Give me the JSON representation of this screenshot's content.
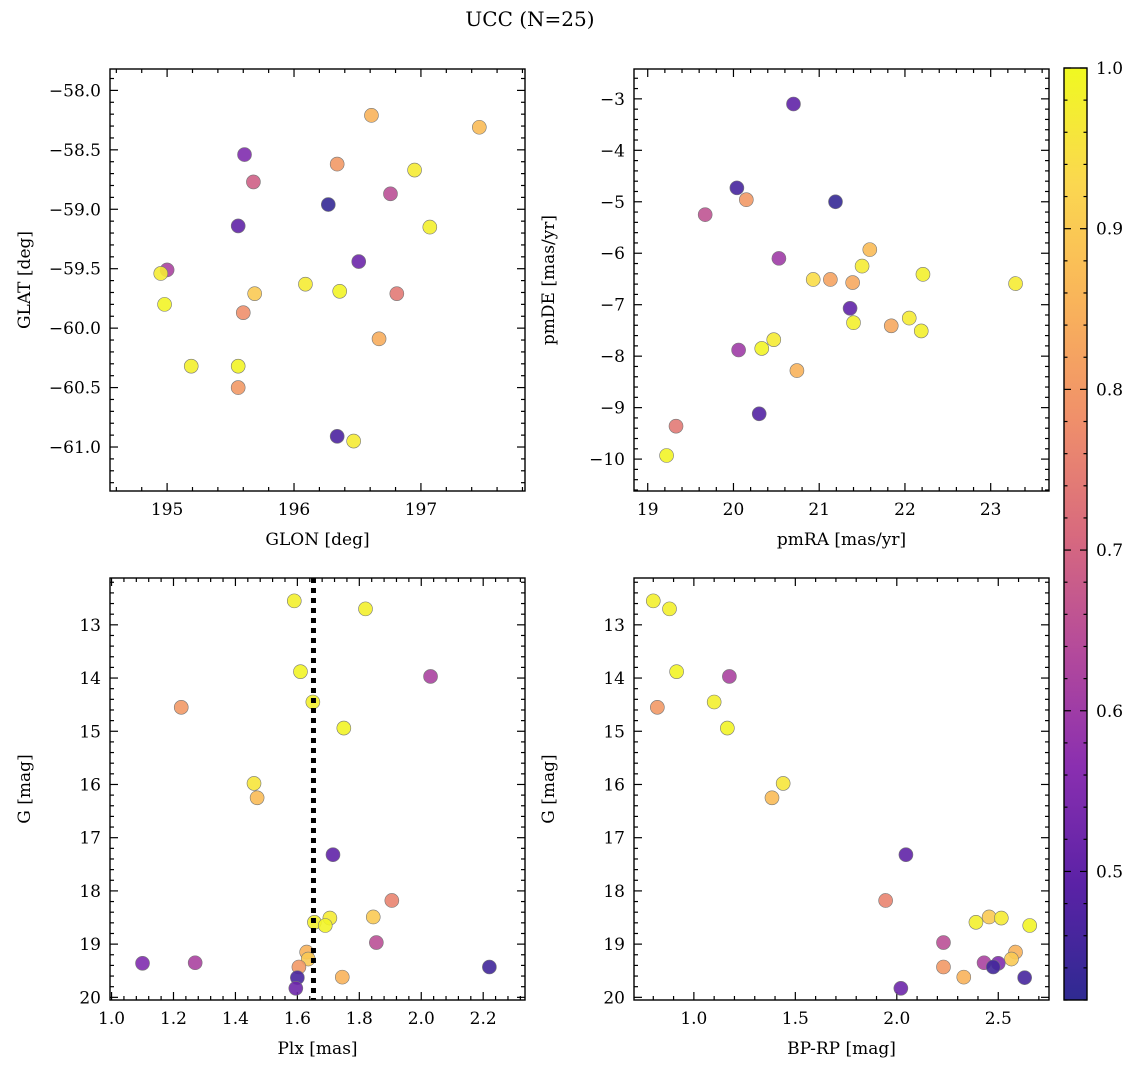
{
  "figure": {
    "title": "UCC (N=25)"
  },
  "colorbar": {
    "vmin": 0.42,
    "vmax": 1.0,
    "ticks": [
      0.5,
      0.6,
      0.7,
      0.8,
      0.9,
      1.0
    ],
    "tick_labels": [
      "0.5",
      "0.6",
      "0.7",
      "0.8",
      "0.9",
      "1.0"
    ],
    "colormap": "plasma"
  },
  "colormap_stops": [
    "#2f2a92",
    "#5b22a6",
    "#8a2fb0",
    "#b44a9b",
    "#d86a7e",
    "#f0906a",
    "#f9b45a",
    "#fbd750",
    "#f0f921"
  ],
  "chart_data": [
    {
      "type": "scatter",
      "title": "",
      "xlabel": "GLON [deg]",
      "ylabel": "GLAT [deg]",
      "xlim": [
        194.55,
        197.82
      ],
      "ylim": [
        -61.37,
        -57.82
      ],
      "y_inverted": false,
      "xticks": [
        195,
        196,
        197
      ],
      "xtick_labels": [
        "195",
        "196",
        "197"
      ],
      "yticks": [
        -58.0,
        -58.5,
        -59.0,
        -59.5,
        -60.0,
        -60.5,
        -61.0
      ],
      "ytick_labels": [
        "−58.0",
        "−58.5",
        "−59.0",
        "−59.5",
        "−60.0",
        "−60.5",
        "−61.0"
      ],
      "points": [
        {
          "x": 196.61,
          "y": -58.21,
          "c": 0.85
        },
        {
          "x": 197.46,
          "y": -58.31,
          "c": 0.87
        },
        {
          "x": 195.61,
          "y": -58.54,
          "c": 0.55
        },
        {
          "x": 196.34,
          "y": -58.62,
          "c": 0.8
        },
        {
          "x": 196.95,
          "y": -58.67,
          "c": 0.97
        },
        {
          "x": 195.68,
          "y": -58.77,
          "c": 0.69
        },
        {
          "x": 196.76,
          "y": -58.87,
          "c": 0.65
        },
        {
          "x": 196.27,
          "y": -58.96,
          "c": 0.43
        },
        {
          "x": 195.56,
          "y": -59.14,
          "c": 0.5
        },
        {
          "x": 197.07,
          "y": -59.15,
          "c": 0.98
        },
        {
          "x": 196.51,
          "y": -59.44,
          "c": 0.52
        },
        {
          "x": 195.0,
          "y": -59.51,
          "c": 0.62
        },
        {
          "x": 194.95,
          "y": -59.54,
          "c": 0.97
        },
        {
          "x": 196.09,
          "y": -59.63,
          "c": 0.97
        },
        {
          "x": 196.36,
          "y": -59.69,
          "c": 0.99
        },
        {
          "x": 195.69,
          "y": -59.71,
          "c": 0.9
        },
        {
          "x": 196.81,
          "y": -59.71,
          "c": 0.74
        },
        {
          "x": 194.98,
          "y": -59.8,
          "c": 0.99
        },
        {
          "x": 195.6,
          "y": -59.87,
          "c": 0.78
        },
        {
          "x": 196.67,
          "y": -60.09,
          "c": 0.84
        },
        {
          "x": 195.19,
          "y": -60.32,
          "c": 0.98
        },
        {
          "x": 195.56,
          "y": -60.32,
          "c": 0.99
        },
        {
          "x": 195.56,
          "y": -60.5,
          "c": 0.8
        },
        {
          "x": 196.34,
          "y": -60.91,
          "c": 0.47
        },
        {
          "x": 196.47,
          "y": -60.95,
          "c": 0.97
        }
      ]
    },
    {
      "type": "scatter",
      "title": "",
      "xlabel": "pmRA [mas/yr]",
      "ylabel": "pmDE [mas/yr]",
      "xlim": [
        18.84,
        23.68
      ],
      "ylim": [
        -10.62,
        -2.42
      ],
      "y_inverted": false,
      "xticks": [
        19,
        20,
        21,
        22,
        23
      ],
      "xtick_labels": [
        "19",
        "20",
        "21",
        "22",
        "23"
      ],
      "yticks": [
        -3,
        -4,
        -5,
        -6,
        -7,
        -8,
        -9,
        -10
      ],
      "ytick_labels": [
        "−3",
        "−4",
        "−5",
        "−6",
        "−7",
        "−8",
        "−9",
        "−10"
      ],
      "points": [
        {
          "x": 20.7,
          "y": -3.1,
          "c": 0.5
        },
        {
          "x": 20.04,
          "y": -4.73,
          "c": 0.46
        },
        {
          "x": 21.19,
          "y": -5.0,
          "c": 0.43
        },
        {
          "x": 20.15,
          "y": -4.96,
          "c": 0.8
        },
        {
          "x": 19.67,
          "y": -5.25,
          "c": 0.66
        },
        {
          "x": 20.53,
          "y": -6.1,
          "c": 0.6
        },
        {
          "x": 21.59,
          "y": -5.93,
          "c": 0.87
        },
        {
          "x": 21.5,
          "y": -6.25,
          "c": 0.97
        },
        {
          "x": 22.21,
          "y": -6.41,
          "c": 0.98
        },
        {
          "x": 20.93,
          "y": -6.51,
          "c": 0.94
        },
        {
          "x": 21.13,
          "y": -6.51,
          "c": 0.82
        },
        {
          "x": 21.39,
          "y": -6.57,
          "c": 0.83
        },
        {
          "x": 23.29,
          "y": -6.59,
          "c": 0.97
        },
        {
          "x": 21.36,
          "y": -7.07,
          "c": 0.5
        },
        {
          "x": 22.05,
          "y": -7.26,
          "c": 0.97
        },
        {
          "x": 21.4,
          "y": -7.35,
          "c": 0.98
        },
        {
          "x": 21.84,
          "y": -7.41,
          "c": 0.83
        },
        {
          "x": 22.19,
          "y": -7.51,
          "c": 0.98
        },
        {
          "x": 20.47,
          "y": -7.68,
          "c": 0.97
        },
        {
          "x": 20.33,
          "y": -7.85,
          "c": 0.99
        },
        {
          "x": 20.06,
          "y": -7.88,
          "c": 0.6
        },
        {
          "x": 20.74,
          "y": -8.28,
          "c": 0.85
        },
        {
          "x": 20.3,
          "y": -9.12,
          "c": 0.48
        },
        {
          "x": 19.33,
          "y": -9.36,
          "c": 0.74
        },
        {
          "x": 19.22,
          "y": -9.93,
          "c": 0.99
        }
      ]
    },
    {
      "type": "scatter",
      "title": "",
      "xlabel": "Plx [mas]",
      "ylabel": "G [mag]",
      "xlim": [
        0.995,
        2.335
      ],
      "ylim": [
        12.12,
        20.05
      ],
      "y_inverted": true,
      "xticks": [
        1.0,
        1.2,
        1.4,
        1.6,
        1.8,
        2.0,
        2.2
      ],
      "xtick_labels": [
        "1.0",
        "1.2",
        "1.4",
        "1.6",
        "1.8",
        "2.0",
        "2.2"
      ],
      "yticks": [
        13,
        14,
        15,
        16,
        17,
        18,
        19,
        20
      ],
      "ytick_labels": [
        "13",
        "14",
        "15",
        "16",
        "17",
        "18",
        "19",
        "20"
      ],
      "vline": {
        "x": 1.652,
        "style": "dotted"
      },
      "points": [
        {
          "x": 1.59,
          "y": 12.55,
          "c": 0.98
        },
        {
          "x": 1.82,
          "y": 12.7,
          "c": 0.98
        },
        {
          "x": 1.61,
          "y": 13.88,
          "c": 0.99
        },
        {
          "x": 2.03,
          "y": 13.97,
          "c": 0.62
        },
        {
          "x": 1.65,
          "y": 14.45,
          "c": 0.98
        },
        {
          "x": 1.225,
          "y": 14.55,
          "c": 0.8
        },
        {
          "x": 1.75,
          "y": 14.94,
          "c": 0.99
        },
        {
          "x": 1.46,
          "y": 15.98,
          "c": 0.96
        },
        {
          "x": 1.47,
          "y": 16.25,
          "c": 0.87
        },
        {
          "x": 1.715,
          "y": 17.32,
          "c": 0.5
        },
        {
          "x": 1.905,
          "y": 18.18,
          "c": 0.76
        },
        {
          "x": 1.845,
          "y": 18.49,
          "c": 0.9
        },
        {
          "x": 1.705,
          "y": 18.51,
          "c": 0.97
        },
        {
          "x": 1.655,
          "y": 18.59,
          "c": 0.98
        },
        {
          "x": 1.69,
          "y": 18.65,
          "c": 0.99
        },
        {
          "x": 1.855,
          "y": 18.97,
          "c": 0.65
        },
        {
          "x": 1.63,
          "y": 19.15,
          "c": 0.85
        },
        {
          "x": 1.635,
          "y": 19.28,
          "c": 0.9
        },
        {
          "x": 1.1,
          "y": 19.36,
          "c": 0.55
        },
        {
          "x": 1.27,
          "y": 19.35,
          "c": 0.62
        },
        {
          "x": 2.22,
          "y": 19.43,
          "c": 0.45
        },
        {
          "x": 1.605,
          "y": 19.43,
          "c": 0.8
        },
        {
          "x": 1.745,
          "y": 19.62,
          "c": 0.85
        },
        {
          "x": 1.6,
          "y": 19.63,
          "c": 0.46
        },
        {
          "x": 1.595,
          "y": 19.83,
          "c": 0.52
        }
      ]
    },
    {
      "type": "scatter",
      "title": "",
      "xlabel": "BP-RP [mag]",
      "ylabel": "G [mag]",
      "xlim": [
        0.705,
        2.75
      ],
      "ylim": [
        12.12,
        20.05
      ],
      "y_inverted": true,
      "xticks": [
        1.0,
        1.5,
        2.0,
        2.5
      ],
      "xtick_labels": [
        "1.0",
        "1.5",
        "2.0",
        "2.5"
      ],
      "yticks": [
        13,
        14,
        15,
        16,
        17,
        18,
        19,
        20
      ],
      "ytick_labels": [
        "13",
        "14",
        "15",
        "16",
        "17",
        "18",
        "19",
        "20"
      ],
      "points": [
        {
          "x": 0.8,
          "y": 12.55,
          "c": 0.98
        },
        {
          "x": 0.88,
          "y": 12.7,
          "c": 0.98
        },
        {
          "x": 0.915,
          "y": 13.88,
          "c": 0.99
        },
        {
          "x": 1.175,
          "y": 13.97,
          "c": 0.62
        },
        {
          "x": 0.82,
          "y": 14.55,
          "c": 0.8
        },
        {
          "x": 1.1,
          "y": 14.45,
          "c": 0.98
        },
        {
          "x": 1.165,
          "y": 14.94,
          "c": 0.99
        },
        {
          "x": 1.44,
          "y": 15.98,
          "c": 0.96
        },
        {
          "x": 1.385,
          "y": 16.25,
          "c": 0.87
        },
        {
          "x": 2.045,
          "y": 17.32,
          "c": 0.5
        },
        {
          "x": 1.945,
          "y": 18.18,
          "c": 0.76
        },
        {
          "x": 2.39,
          "y": 18.59,
          "c": 0.98
        },
        {
          "x": 2.455,
          "y": 18.49,
          "c": 0.9
        },
        {
          "x": 2.515,
          "y": 18.51,
          "c": 0.97
        },
        {
          "x": 2.655,
          "y": 18.65,
          "c": 0.99
        },
        {
          "x": 2.23,
          "y": 18.97,
          "c": 0.65
        },
        {
          "x": 2.585,
          "y": 19.15,
          "c": 0.85
        },
        {
          "x": 2.565,
          "y": 19.28,
          "c": 0.9
        },
        {
          "x": 2.43,
          "y": 19.35,
          "c": 0.62
        },
        {
          "x": 2.5,
          "y": 19.36,
          "c": 0.55
        },
        {
          "x": 2.23,
          "y": 19.43,
          "c": 0.8
        },
        {
          "x": 2.475,
          "y": 19.43,
          "c": 0.45
        },
        {
          "x": 2.33,
          "y": 19.62,
          "c": 0.85
        },
        {
          "x": 2.63,
          "y": 19.63,
          "c": 0.46
        },
        {
          "x": 2.02,
          "y": 19.83,
          "c": 0.52
        }
      ]
    }
  ]
}
